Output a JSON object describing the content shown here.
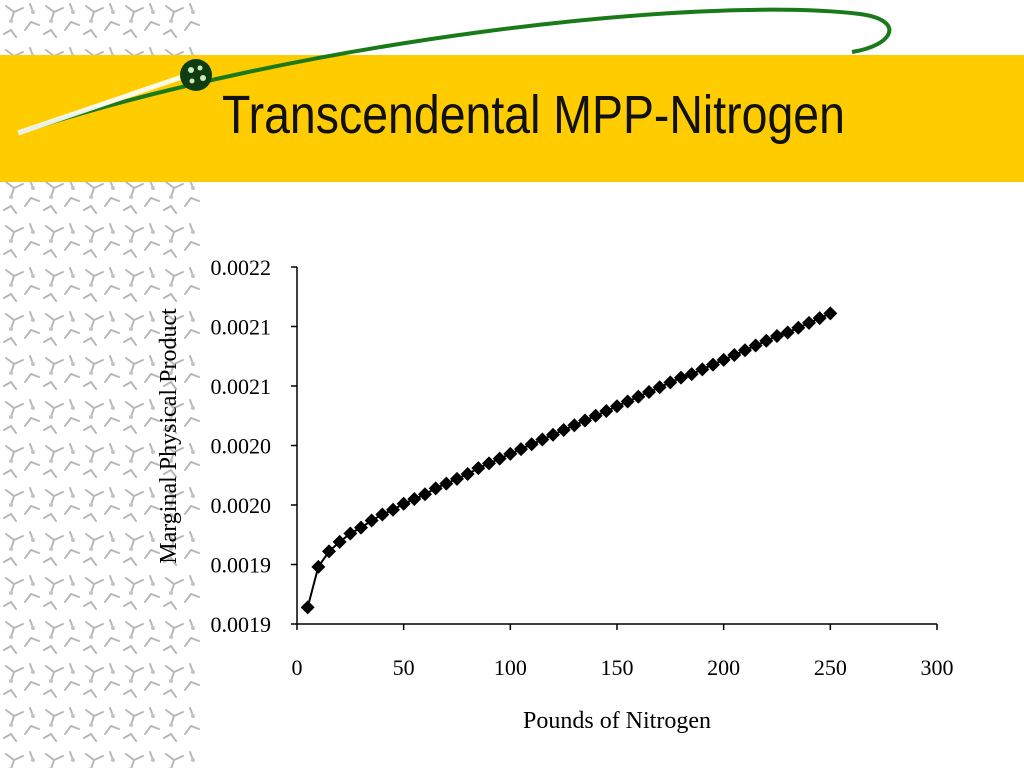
{
  "slide": {
    "title": "Transcendental MPP-Nitrogen",
    "colors": {
      "band": "#FFCC00",
      "swoosh": "#1a7a1a",
      "marker": "#000000"
    }
  },
  "chart_data": {
    "type": "line",
    "title": "",
    "xlabel": "Pounds of Nitrogen",
    "ylabel": "Marginal Physical Product",
    "xlim": [
      0,
      300
    ],
    "ylim": [
      0.0019,
      0.0022
    ],
    "x_ticks": [
      0,
      50,
      100,
      150,
      200,
      250,
      300
    ],
    "x_tick_labels": [
      "0",
      "50",
      "100",
      "150",
      "200",
      "250",
      "300"
    ],
    "y_tick_values": [
      0.0019,
      0.00195,
      0.002,
      0.00205,
      0.0021,
      0.00215,
      0.0022
    ],
    "y_tick_labels": [
      "0.0019",
      "0.0019",
      "0.0020",
      "0.0020",
      "0.0021",
      "0.0021",
      "0.0022"
    ],
    "marker": "diamond",
    "grid": false,
    "series": [
      {
        "x": [
          5,
          10,
          15,
          20,
          25,
          30,
          35,
          40,
          45,
          50,
          55,
          60,
          65,
          70,
          75,
          80,
          85,
          90,
          95,
          100,
          105,
          110,
          115,
          120,
          125,
          130,
          135,
          140,
          145,
          150,
          155,
          160,
          165,
          170,
          175,
          180,
          185,
          190,
          195,
          200,
          205,
          210,
          215,
          220,
          225,
          230,
          235,
          240,
          245,
          250
        ],
        "y": [
          0.001914,
          0.001948,
          0.001961,
          0.001969,
          0.001976,
          0.001981,
          0.001987,
          0.001992,
          0.001996,
          0.002001,
          0.002005,
          0.002009,
          0.002014,
          0.002018,
          0.002022,
          0.002026,
          0.002031,
          0.002035,
          0.002039,
          0.002043,
          0.002047,
          0.002051,
          0.002055,
          0.002059,
          0.002063,
          0.002067,
          0.002071,
          0.002075,
          0.002079,
          0.002083,
          0.002087,
          0.002091,
          0.002095,
          0.002099,
          0.002103,
          0.002107,
          0.00211,
          0.002114,
          0.002118,
          0.002122,
          0.002126,
          0.00213,
          0.002134,
          0.002138,
          0.002142,
          0.002145,
          0.002149,
          0.002153,
          0.002157,
          0.002161
        ]
      }
    ]
  }
}
